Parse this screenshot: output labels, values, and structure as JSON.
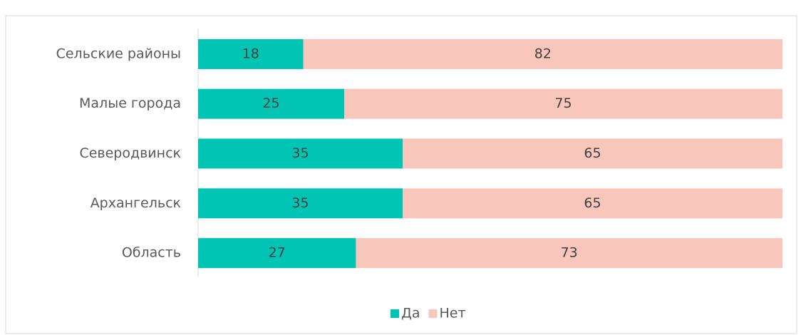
{
  "chart_data": {
    "type": "stacked_bar_horizontal",
    "categories": [
      "Сельские районы",
      "Малые города",
      "Северодвинск",
      "Архангельск",
      "Область"
    ],
    "series": [
      {
        "name": "Да",
        "color": "#00c4b4",
        "values": [
          18,
          25,
          35,
          35,
          27
        ]
      },
      {
        "name": "Нет",
        "color": "#f8c6bb",
        "values": [
          82,
          75,
          65,
          65,
          73
        ]
      }
    ],
    "xlim": [
      0,
      100
    ],
    "legend": "bottom"
  }
}
